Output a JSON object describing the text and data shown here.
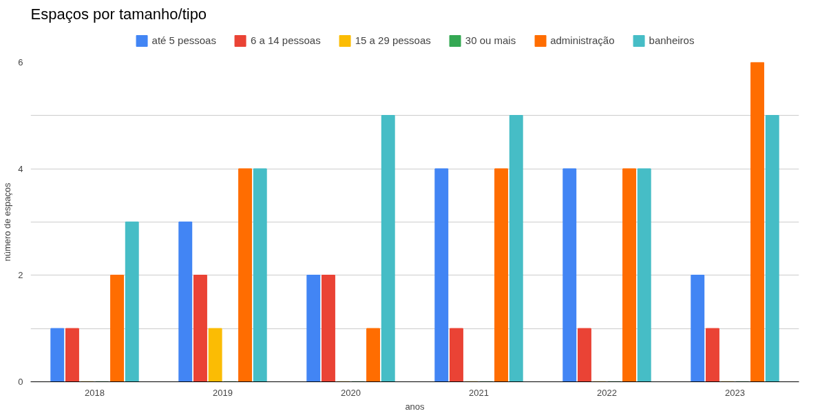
{
  "chart_data": {
    "type": "bar",
    "title": "Espaços por tamanho/tipo",
    "xlabel": "anos",
    "ylabel": "número de espaços",
    "categories": [
      "2018",
      "2019",
      "2020",
      "2021",
      "2022",
      "2023"
    ],
    "series": [
      {
        "name": "até 5 pessoas",
        "color": "#4285f4",
        "values": [
          1,
          3,
          2,
          4,
          4,
          2
        ]
      },
      {
        "name": "6 a 14 pessoas",
        "color": "#ea4335",
        "values": [
          1,
          2,
          2,
          1,
          1,
          1
        ]
      },
      {
        "name": "15 a 29 pessoas",
        "color": "#fbbc04",
        "values": [
          0,
          1,
          0,
          0,
          0,
          0
        ]
      },
      {
        "name": "30 ou mais",
        "color": "#34a853",
        "values": [
          0,
          0,
          0,
          0,
          0,
          0
        ]
      },
      {
        "name": "administração",
        "color": "#ff6d01",
        "values": [
          2,
          4,
          1,
          4,
          4,
          6
        ]
      },
      {
        "name": "banheiros",
        "color": "#46bdc6",
        "values": [
          3,
          4,
          5,
          5,
          4,
          5
        ]
      }
    ],
    "ylim": [
      0,
      6
    ],
    "yticks": [
      0,
      {
        "value": 1,
        "label": null
      },
      2,
      {
        "value": 3,
        "label": null
      },
      4,
      {
        "value": 5,
        "label": null
      },
      6
    ],
    "grid": "y",
    "legend": "top"
  }
}
